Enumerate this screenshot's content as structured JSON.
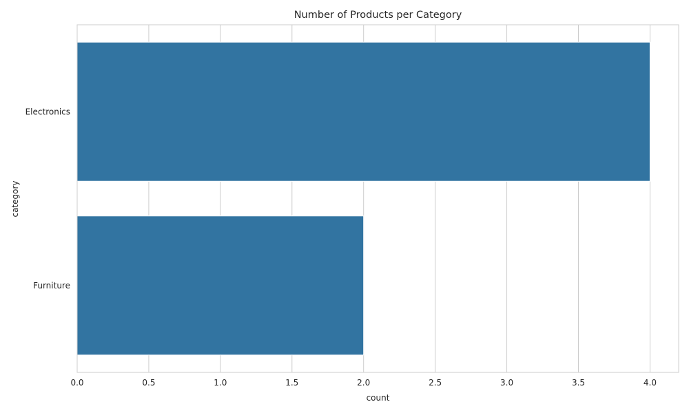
{
  "chart_data": {
    "type": "bar",
    "orientation": "horizontal",
    "title": "Number of Products per Category",
    "xlabel": "count",
    "ylabel": "category",
    "categories": [
      "Electronics",
      "Furniture"
    ],
    "values": [
      4,
      2
    ],
    "xlim": [
      0,
      4.2
    ],
    "xticks": [
      "0.0",
      "0.5",
      "1.0",
      "1.5",
      "2.0",
      "2.5",
      "3.0",
      "3.5",
      "4.0"
    ],
    "grid": true,
    "bar_color": "#3274a1"
  }
}
